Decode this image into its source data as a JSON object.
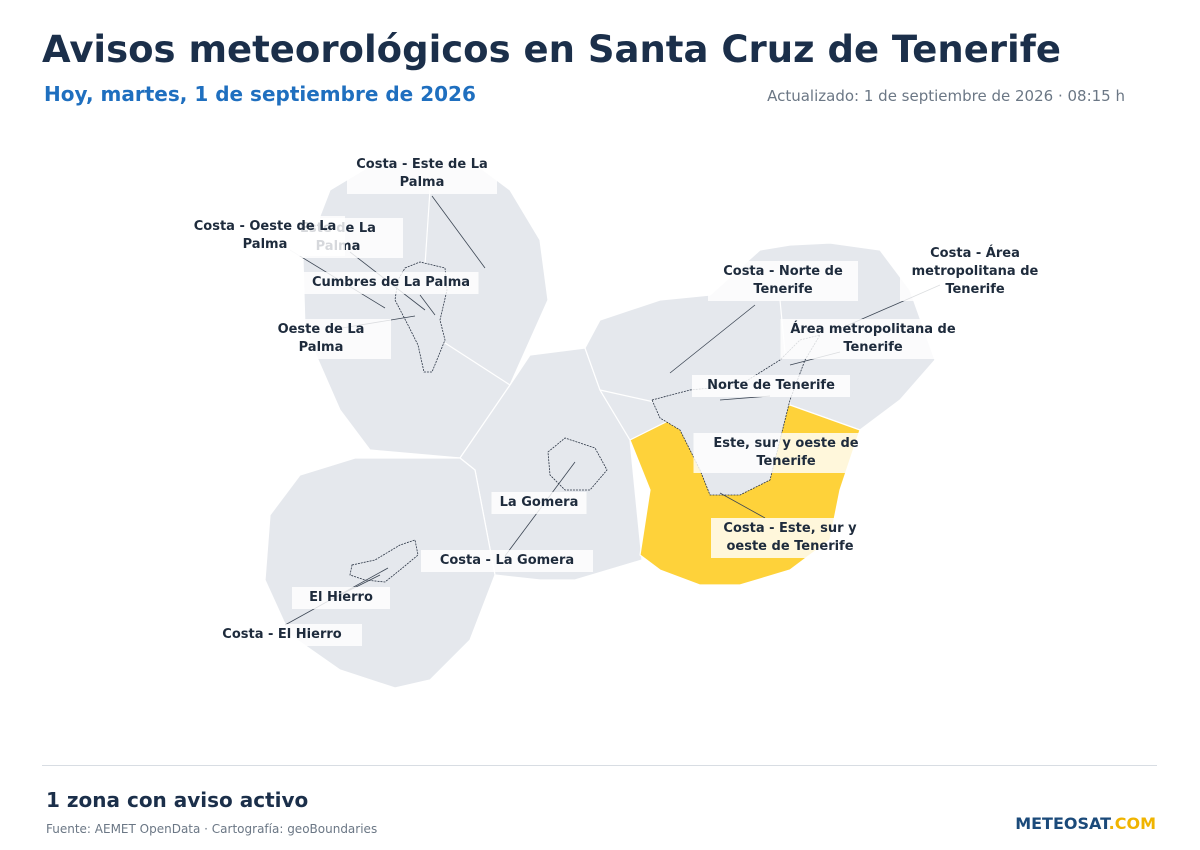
{
  "header": {
    "title": "Avisos meteorológicos en Santa Cruz de Tenerife",
    "subtitle": "Hoy, martes, 1 de septiembre de 2026",
    "updated": "Actualizado: 1 de septiembre de 2026 · 08:15 h"
  },
  "zones": [
    {
      "label": "Costa - Este de La Palma",
      "warning": false
    },
    {
      "label": "Este de La Palma",
      "warning": false
    },
    {
      "label": "Costa - Oeste de La Palma",
      "warning": false
    },
    {
      "label": "Cumbres de La Palma",
      "warning": false
    },
    {
      "label": "Oeste de La Palma",
      "warning": false
    },
    {
      "label": "Costa - Norte de Tenerife",
      "warning": false
    },
    {
      "label": "Costa - Área metropolitana de Tenerife",
      "warning": false
    },
    {
      "label": "Área metropolitana de Tenerife",
      "warning": false
    },
    {
      "label": "Norte de Tenerife",
      "warning": false
    },
    {
      "label": "Este, sur y oeste de Tenerife",
      "warning": false
    },
    {
      "label": "Costa - Este, sur y oeste de Tenerife",
      "warning": true
    },
    {
      "label": "La Gomera",
      "warning": false
    },
    {
      "label": "Costa - La Gomera",
      "warning": false
    },
    {
      "label": "El Hierro",
      "warning": false
    },
    {
      "label": "Costa - El Hierro",
      "warning": false
    }
  ],
  "warning_color": "#fed23a",
  "footer": {
    "summary": "1 zona con aviso activo",
    "source": "Fuente: AEMET OpenData · Cartografía: geoBoundaries",
    "logo_main": "METEOSAT",
    "logo_suffix": ".COM"
  }
}
